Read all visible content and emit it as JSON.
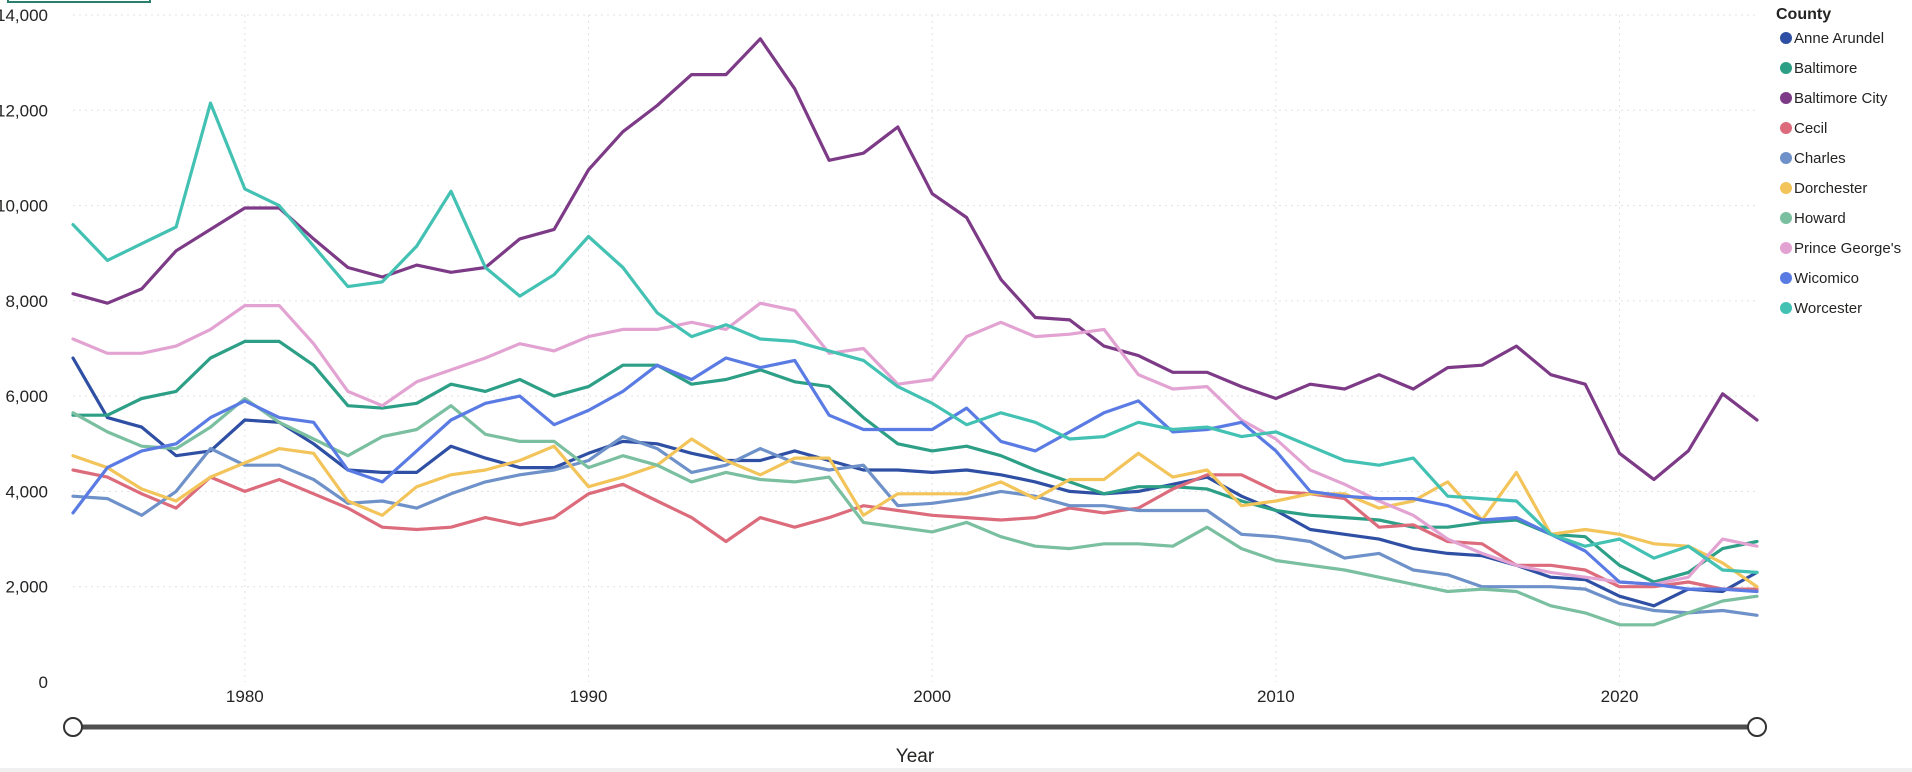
{
  "chart_data": {
    "type": "line",
    "xlabel": "Year",
    "ylabel": "",
    "legend_title": "County",
    "legend_position": "right",
    "grid": true,
    "xlim": [
      1975,
      2024
    ],
    "ylim": [
      0,
      14000
    ],
    "y_ticks": [
      "0",
      "2,000",
      "4,000",
      "6,000",
      "8,000",
      "10,000",
      "12,000",
      "14,000"
    ],
    "x_ticks": [
      "1980",
      "1990",
      "2000",
      "2010",
      "2020"
    ],
    "x": [
      1975,
      1976,
      1977,
      1978,
      1979,
      1980,
      1981,
      1982,
      1983,
      1984,
      1985,
      1986,
      1987,
      1988,
      1989,
      1990,
      1991,
      1992,
      1993,
      1994,
      1995,
      1996,
      1997,
      1998,
      1999,
      2000,
      2001,
      2002,
      2003,
      2004,
      2005,
      2006,
      2007,
      2008,
      2009,
      2010,
      2011,
      2012,
      2013,
      2014,
      2015,
      2016,
      2017,
      2018,
      2019,
      2020,
      2021,
      2022,
      2023,
      2024
    ],
    "series": [
      {
        "name": "Anne Arundel",
        "color": "#2E4FA3",
        "values": [
          6800,
          5550,
          5350,
          4750,
          4850,
          5500,
          5450,
          5000,
          4450,
          4400,
          4400,
          4950,
          4700,
          4500,
          4500,
          4800,
          5050,
          5000,
          4800,
          4650,
          4650,
          4850,
          4650,
          4450,
          4450,
          4400,
          4450,
          4350,
          4200,
          4000,
          3950,
          4000,
          4150,
          4300,
          3900,
          3600,
          3200,
          3100,
          3000,
          2800,
          2700,
          2650,
          2450,
          2200,
          2150,
          1800,
          1600,
          1950,
          1900,
          2300
        ]
      },
      {
        "name": "Baltimore",
        "color": "#2C9F86",
        "values": [
          5600,
          5600,
          5950,
          6100,
          6800,
          7150,
          7150,
          6650,
          5800,
          5750,
          5850,
          6250,
          6100,
          6350,
          6000,
          6200,
          6650,
          6650,
          6250,
          6350,
          6550,
          6300,
          6200,
          5550,
          5000,
          4850,
          4950,
          4750,
          4450,
          4200,
          3950,
          4100,
          4100,
          4050,
          3800,
          3600,
          3500,
          3450,
          3400,
          3250,
          3250,
          3350,
          3400,
          3100,
          3050,
          2450,
          2100,
          2300,
          2800,
          2950
        ]
      },
      {
        "name": "Baltimore City",
        "color": "#7D3A87",
        "values": [
          8150,
          7950,
          8250,
          9050,
          9500,
          9950,
          9950,
          9300,
          8700,
          8500,
          8750,
          8600,
          8700,
          9300,
          9500,
          10750,
          11550,
          12100,
          12750,
          12750,
          13500,
          12450,
          10950,
          11100,
          11650,
          10250,
          9750,
          8450,
          7650,
          7600,
          7050,
          6850,
          6500,
          6500,
          6200,
          5950,
          6250,
          6150,
          6450,
          6150,
          6600,
          6650,
          7050,
          6450,
          6250,
          4800,
          4250,
          4850,
          6050,
          5500
        ]
      },
      {
        "name": "Cecil",
        "color": "#DC6B7C",
        "values": [
          4450,
          4300,
          3950,
          3650,
          4300,
          4000,
          4250,
          3950,
          3650,
          3250,
          3200,
          3250,
          3450,
          3300,
          3450,
          3950,
          4150,
          3800,
          3450,
          2950,
          3450,
          3250,
          3450,
          3700,
          3600,
          3500,
          3450,
          3400,
          3450,
          3650,
          3550,
          3650,
          4050,
          4350,
          4350,
          4000,
          3950,
          3850,
          3250,
          3300,
          2950,
          2900,
          2450,
          2450,
          2350,
          2000,
          2000,
          2100,
          1950,
          1950
        ]
      },
      {
        "name": "Charles",
        "color": "#6E91C9",
        "values": [
          3900,
          3850,
          3500,
          4000,
          4900,
          4550,
          4550,
          4250,
          3750,
          3800,
          3650,
          3950,
          4200,
          4350,
          4450,
          4650,
          5150,
          4900,
          4400,
          4550,
          4900,
          4600,
          4450,
          4550,
          3700,
          3750,
          3850,
          4000,
          3900,
          3700,
          3700,
          3600,
          3600,
          3600,
          3100,
          3050,
          2950,
          2600,
          2700,
          2350,
          2250,
          2000,
          2000,
          2000,
          1950,
          1650,
          1500,
          1450,
          1500,
          1400
        ]
      },
      {
        "name": "Dorchester",
        "color": "#F2C45A",
        "values": [
          4750,
          4500,
          4050,
          3800,
          4300,
          4600,
          4900,
          4800,
          3800,
          3500,
          4100,
          4350,
          4450,
          4650,
          4950,
          4100,
          4300,
          4550,
          5100,
          4650,
          4350,
          4700,
          4700,
          3500,
          3950,
          3950,
          3950,
          4200,
          3850,
          4250,
          4250,
          4800,
          4300,
          4450,
          3700,
          3800,
          3950,
          3950,
          3650,
          3800,
          4200,
          3400,
          4400,
          3100,
          3200,
          3100,
          2900,
          2850,
          2500,
          2000
        ]
      },
      {
        "name": "Howard",
        "color": "#7ABF9F",
        "values": [
          5650,
          5250,
          4950,
          4900,
          5350,
          5950,
          5450,
          5100,
          4750,
          5150,
          5300,
          5800,
          5200,
          5050,
          5050,
          4500,
          4750,
          4550,
          4200,
          4400,
          4250,
          4200,
          4300,
          3350,
          3250,
          3150,
          3350,
          3050,
          2850,
          2800,
          2900,
          2900,
          2850,
          3250,
          2800,
          2550,
          2450,
          2350,
          2200,
          2050,
          1900,
          1950,
          1900,
          1600,
          1450,
          1200,
          1200,
          1450,
          1700,
          1800
        ]
      },
      {
        "name": "Prince George's",
        "color": "#E3A3D2",
        "values": [
          7200,
          6900,
          6900,
          7050,
          7400,
          7900,
          7900,
          7100,
          6100,
          5800,
          6300,
          6550,
          6800,
          7100,
          6950,
          7250,
          7400,
          7400,
          7550,
          7400,
          7950,
          7800,
          6900,
          7000,
          6250,
          6350,
          7250,
          7550,
          7250,
          7300,
          7400,
          6450,
          6150,
          6200,
          5500,
          5100,
          4450,
          4150,
          3800,
          3500,
          3000,
          2700,
          2450,
          2300,
          2200,
          2100,
          2050,
          2200,
          3000,
          2850
        ]
      },
      {
        "name": "Wicomico",
        "color": "#5A7BE3",
        "values": [
          3550,
          4500,
          4850,
          5000,
          5550,
          5900,
          5550,
          5450,
          4450,
          4200,
          4850,
          5500,
          5850,
          6000,
          5400,
          5700,
          6100,
          6650,
          6350,
          6800,
          6600,
          6750,
          5600,
          5300,
          5300,
          5300,
          5750,
          5050,
          4850,
          5250,
          5650,
          5900,
          5250,
          5300,
          5450,
          4850,
          4000,
          3900,
          3850,
          3850,
          3700,
          3400,
          3450,
          3100,
          2750,
          2100,
          2050,
          1950,
          1950,
          1900
        ]
      },
      {
        "name": "Worcester",
        "color": "#43C1B3",
        "values": [
          9600,
          8850,
          9200,
          9550,
          12150,
          10350,
          10000,
          9150,
          8300,
          8400,
          9150,
          10300,
          8700,
          8100,
          8550,
          9350,
          8700,
          7750,
          7250,
          7500,
          7200,
          7150,
          6950,
          6750,
          6200,
          5850,
          5400,
          5650,
          5450,
          5100,
          5150,
          5450,
          5300,
          5350,
          5150,
          5250,
          4950,
          4650,
          4550,
          4700,
          3900,
          3850,
          3800,
          3100,
          2850,
          3000,
          2600,
          2850,
          2350,
          2300
        ]
      }
    ]
  }
}
